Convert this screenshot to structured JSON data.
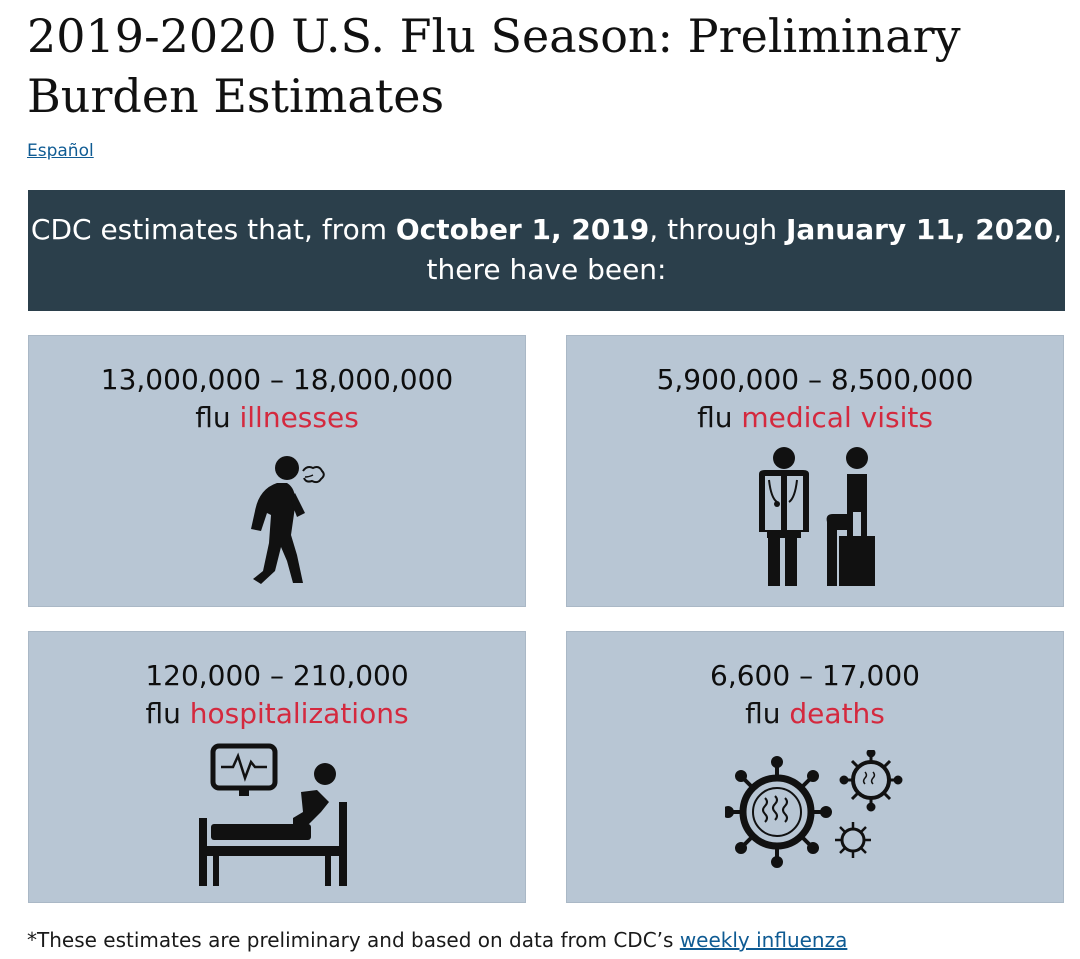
{
  "page": {
    "title": "2019-2020 U.S. Flu Season: Preliminary Burden Estimates",
    "language_link": "Español"
  },
  "banner": {
    "prefix": "CDC estimates that, from ",
    "start_date": "October 1, 2019",
    "middle": ", through ",
    "end_date": "January 11, 2020",
    "suffix": ", there have been:"
  },
  "cards": [
    {
      "range": "13,000,000 – 18,000,000",
      "prefix": "flu ",
      "emphasis": "illnesses",
      "icon": "sick-person-icon"
    },
    {
      "range": "5,900,000 – 8,500,000",
      "prefix": "flu ",
      "emphasis": "medical visits",
      "icon": "doctor-patient-icon"
    },
    {
      "range": "120,000 – 210,000",
      "prefix": "flu ",
      "emphasis": "hospitalizations",
      "icon": "hospital-bed-icon"
    },
    {
      "range": "6,600 – 17,000",
      "prefix": "flu ",
      "emphasis": "deaths",
      "icon": "virus-icon"
    }
  ],
  "footnote": {
    "text": "*These estimates are preliminary and based on data from CDC’s ",
    "link": "weekly influenza"
  },
  "colors": {
    "banner_bg": "#2b3f4b",
    "card_bg": "#b8c6d4",
    "emphasis": "#d4293e",
    "link": "#0f5b93"
  }
}
